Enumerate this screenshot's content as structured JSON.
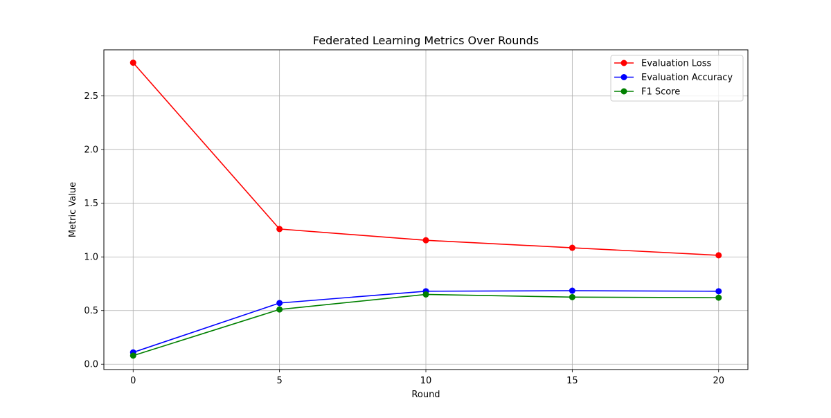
{
  "chart_data": {
    "type": "line",
    "title": "Federated Learning Metrics Over Rounds",
    "xlabel": "Round",
    "ylabel": "Metric Value",
    "x": [
      0,
      5,
      10,
      15,
      20
    ],
    "xlim": [
      -1,
      21
    ],
    "ylim": [
      -0.05,
      2.93
    ],
    "xticks": [
      0,
      5,
      10,
      15,
      20
    ],
    "yticks": [
      0.0,
      0.5,
      1.0,
      1.5,
      2.0,
      2.5
    ],
    "ytick_labels": [
      "0.0",
      "0.5",
      "1.0",
      "1.5",
      "2.0",
      "2.5"
    ],
    "grid": true,
    "legend_position": "top-right",
    "series": [
      {
        "name": "Evaluation Loss",
        "color": "#ff0000",
        "values": [
          2.81,
          1.26,
          1.155,
          1.085,
          1.015
        ]
      },
      {
        "name": "Evaluation Accuracy",
        "color": "#0000ff",
        "values": [
          0.11,
          0.57,
          0.68,
          0.685,
          0.68
        ]
      },
      {
        "name": "F1 Score",
        "color": "#008000",
        "values": [
          0.08,
          0.51,
          0.65,
          0.625,
          0.62
        ]
      }
    ]
  }
}
